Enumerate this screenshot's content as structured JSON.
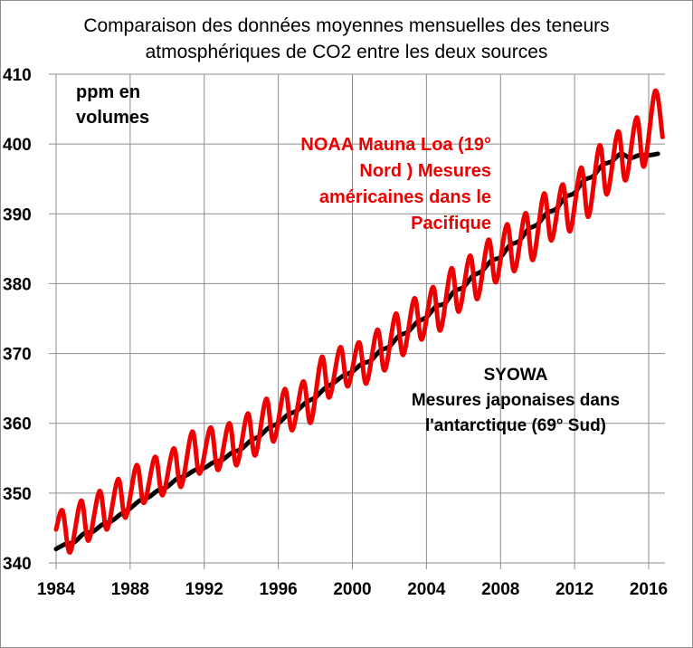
{
  "chart_data": {
    "type": "line",
    "title": "Comparaison des données moyennes mensuelles des teneurs atmosphériques de CO2 entre les deux sources",
    "title_lines": [
      "Comparaison des données moyennes mensuelles des teneurs",
      "atmosphériques de CO2 entre les deux sources"
    ],
    "ylabel": "ppm en volumes",
    "ylabel_lines": [
      "ppm en",
      "volumes"
    ],
    "xlabel": "",
    "ylim": [
      340,
      410
    ],
    "xlim": [
      1984,
      2017.1
    ],
    "grid": true,
    "yticks": [
      "340",
      "350",
      "360",
      "370",
      "380",
      "390",
      "400",
      "410"
    ],
    "xticks": [
      "1984",
      "1988",
      "1992",
      "1996",
      "2000",
      "2004",
      "2008",
      "2012",
      "2016"
    ],
    "annotations": {
      "noaa_lines": [
        "NOAA  Mauna Loa (19°",
        "Nord ) Mesures",
        "américaines dans le",
        "Pacifique"
      ],
      "syowa_lines": [
        "SYOWA",
        "Mesures japonaises  dans",
        "l'antarctique  (69° Sud)"
      ]
    },
    "series": [
      {
        "name": "NOAA Mauna Loa",
        "color": "#ee0000",
        "x": [
          1984.0,
          1984.35,
          1984.75,
          1985.35,
          1985.75,
          1986.35,
          1986.75,
          1987.35,
          1987.75,
          1988.35,
          1988.75,
          1989.35,
          1989.75,
          1990.35,
          1990.75,
          1991.35,
          1991.75,
          1992.35,
          1992.75,
          1993.35,
          1993.75,
          1994.35,
          1994.75,
          1995.35,
          1995.75,
          1996.35,
          1996.75,
          1997.35,
          1997.75,
          1998.35,
          1998.75,
          1999.35,
          1999.75,
          2000.35,
          2000.75,
          2001.35,
          2001.75,
          2002.35,
          2002.75,
          2003.35,
          2003.75,
          2004.35,
          2004.75,
          2005.35,
          2005.75,
          2006.35,
          2006.75,
          2007.35,
          2007.75,
          2008.35,
          2008.75,
          2009.35,
          2009.75,
          2010.35,
          2010.75,
          2011.35,
          2011.75,
          2012.35,
          2012.75,
          2013.35,
          2013.75,
          2014.35,
          2014.75,
          2015.35,
          2015.75,
          2016.35,
          2016.75
        ],
        "values": [
          344.8,
          347.5,
          341.5,
          348.9,
          343.2,
          350.3,
          344.8,
          352.0,
          346.5,
          354.0,
          348.6,
          355.2,
          349.7,
          356.4,
          350.9,
          358.8,
          352.8,
          359.4,
          353.3,
          360.0,
          354.0,
          361.4,
          355.4,
          363.5,
          357.4,
          364.9,
          359.0,
          366.0,
          360.1,
          369.5,
          363.7,
          370.9,
          365.3,
          371.6,
          365.7,
          373.4,
          367.6,
          375.7,
          369.8,
          377.9,
          372.0,
          379.5,
          373.3,
          382.2,
          376.0,
          384.0,
          377.8,
          386.3,
          380.2,
          388.5,
          381.8,
          390.1,
          383.4,
          392.9,
          386.2,
          394.2,
          387.5,
          396.6,
          389.6,
          399.8,
          392.8,
          401.8,
          394.8,
          403.8,
          396.8,
          407.6,
          401.0
        ]
      },
      {
        "name": "SYOWA",
        "color": "#000000",
        "x": [
          1984.0,
          1984.5,
          1985.0,
          1985.5,
          1986.0,
          1986.5,
          1987.0,
          1987.5,
          1988.0,
          1988.5,
          1989.0,
          1989.5,
          1990.0,
          1990.5,
          1991.0,
          1991.5,
          1992.0,
          1992.5,
          1993.0,
          1993.5,
          1994.0,
          1994.5,
          1995.0,
          1995.5,
          1996.0,
          1996.5,
          1997.0,
          1997.5,
          1998.0,
          1998.5,
          1999.0,
          1999.5,
          2000.0,
          2000.5,
          2001.0,
          2001.5,
          2002.0,
          2002.5,
          2003.0,
          2003.5,
          2004.0,
          2004.5,
          2005.0,
          2005.5,
          2006.0,
          2006.5,
          2007.0,
          2007.5,
          2008.0,
          2008.5,
          2009.0,
          2009.5,
          2010.0,
          2010.5,
          2011.0,
          2011.5,
          2012.0,
          2012.5,
          2013.0,
          2013.5,
          2014.0,
          2014.5,
          2015.0,
          2015.5,
          2016.0,
          2016.5
        ],
        "values": [
          342.0,
          342.7,
          343.0,
          344.2,
          344.5,
          345.5,
          346.0,
          347.0,
          347.8,
          348.9,
          349.4,
          350.4,
          350.9,
          352.0,
          352.5,
          353.3,
          353.6,
          354.4,
          354.8,
          355.8,
          356.3,
          357.5,
          358.2,
          359.4,
          360.0,
          361.2,
          361.8,
          363.0,
          363.7,
          365.0,
          365.8,
          366.8,
          367.4,
          368.5,
          369.0,
          370.4,
          371.0,
          372.5,
          373.1,
          374.5,
          375.2,
          376.7,
          377.2,
          378.9,
          379.5,
          381.1,
          381.8,
          383.3,
          383.8,
          385.5,
          386.1,
          387.8,
          388.5,
          390.1,
          390.7,
          392.4,
          393.0,
          394.8,
          395.4,
          397.0,
          397.5,
          398.6,
          398.0,
          398.4,
          398.4,
          398.6
        ]
      }
    ]
  }
}
